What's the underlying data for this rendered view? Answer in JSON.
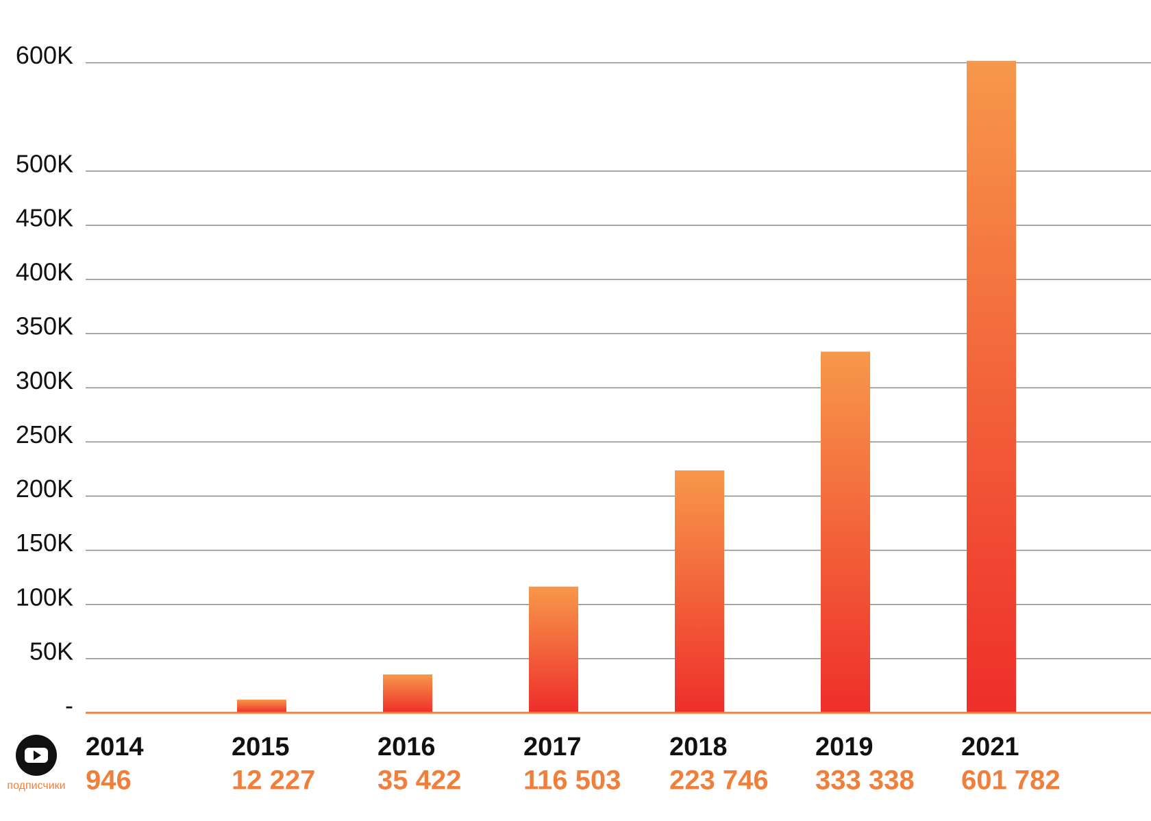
{
  "chart_data": {
    "type": "bar",
    "categories": [
      "2014",
      "2015",
      "2016",
      "2017",
      "2018",
      "2019",
      "2021"
    ],
    "series": [
      {
        "name": "подписчики",
        "colors": [
          "#f7984a",
          "#ee2e2a"
        ],
        "values": [
          946,
          12227,
          35422,
          116503,
          223746,
          333338,
          601782
        ],
        "value_labels": [
          "946",
          "12 227",
          "35 422",
          "116 503",
          "223 746",
          "333 338",
          "601 782"
        ]
      }
    ],
    "label_color": "#f07f3c",
    "ylim": [
      0,
      620000
    ],
    "yticks": [
      {
        "value": 0,
        "label": "-"
      },
      {
        "value": 50000,
        "label": "50K"
      },
      {
        "value": 100000,
        "label": "100K"
      },
      {
        "value": 150000,
        "label": "150K"
      },
      {
        "value": 200000,
        "label": "200K"
      },
      {
        "value": 250000,
        "label": "250K"
      },
      {
        "value": 300000,
        "label": "300K"
      },
      {
        "value": 350000,
        "label": "350K"
      },
      {
        "value": 400000,
        "label": "400K"
      },
      {
        "value": 450000,
        "label": "450K"
      },
      {
        "value": 500000,
        "label": "500K"
      },
      {
        "value": 600000,
        "label": "600K"
      }
    ],
    "grid": true
  }
}
